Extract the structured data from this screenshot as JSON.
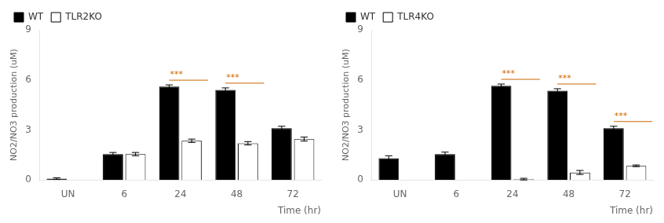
{
  "chart_data": [
    {
      "type": "bar",
      "xlabel": "Time (hr)",
      "ylabel": "NO2/NO3 production (uM)",
      "categories": [
        "UN",
        "6",
        "24",
        "48",
        "72"
      ],
      "series": [
        {
          "name": "WT",
          "color": "#000000",
          "values": [
            0.08,
            1.55,
            5.6,
            5.4,
            3.1
          ],
          "errors": [
            0.05,
            0.1,
            0.1,
            0.12,
            0.12
          ]
        },
        {
          "name": "TLR2KO",
          "color": "#ffffff",
          "values": [
            0.0,
            1.55,
            2.35,
            2.2,
            2.45
          ],
          "errors": [
            0.0,
            0.1,
            0.1,
            0.1,
            0.12
          ]
        }
      ],
      "ylim": [
        0,
        9
      ],
      "yticks": [
        0,
        3,
        6,
        9
      ],
      "grid": false,
      "legend": "upper left",
      "annotations": [
        {
          "text": "***",
          "category": "24",
          "color": "#cc6600"
        },
        {
          "text": "***",
          "category": "48",
          "color": "#cc6600"
        }
      ]
    },
    {
      "type": "bar",
      "xlabel": "Time (hr)",
      "ylabel": "NO2/NO3 production (uM)",
      "categories": [
        "UN",
        "6",
        "24",
        "48",
        "72"
      ],
      "series": [
        {
          "name": "WT",
          "color": "#000000",
          "values": [
            1.3,
            1.55,
            5.65,
            5.35,
            3.1
          ],
          "errors": [
            0.15,
            0.12,
            0.1,
            0.12,
            0.12
          ]
        },
        {
          "name": "TLR4KO",
          "color": "#ffffff",
          "values": [
            0.0,
            0.0,
            0.05,
            0.45,
            0.85
          ],
          "errors": [
            0.0,
            0.0,
            0.05,
            0.12,
            0.05
          ]
        }
      ],
      "ylim": [
        0,
        9
      ],
      "yticks": [
        0,
        3,
        6,
        9
      ],
      "grid": false,
      "legend": "upper left",
      "annotations": [
        {
          "text": "***",
          "category": "24",
          "color": "#cc6600"
        },
        {
          "text": "***",
          "category": "48",
          "color": "#cc6600"
        },
        {
          "text": "***",
          "category": "72",
          "color": "#cc6600"
        }
      ]
    }
  ]
}
